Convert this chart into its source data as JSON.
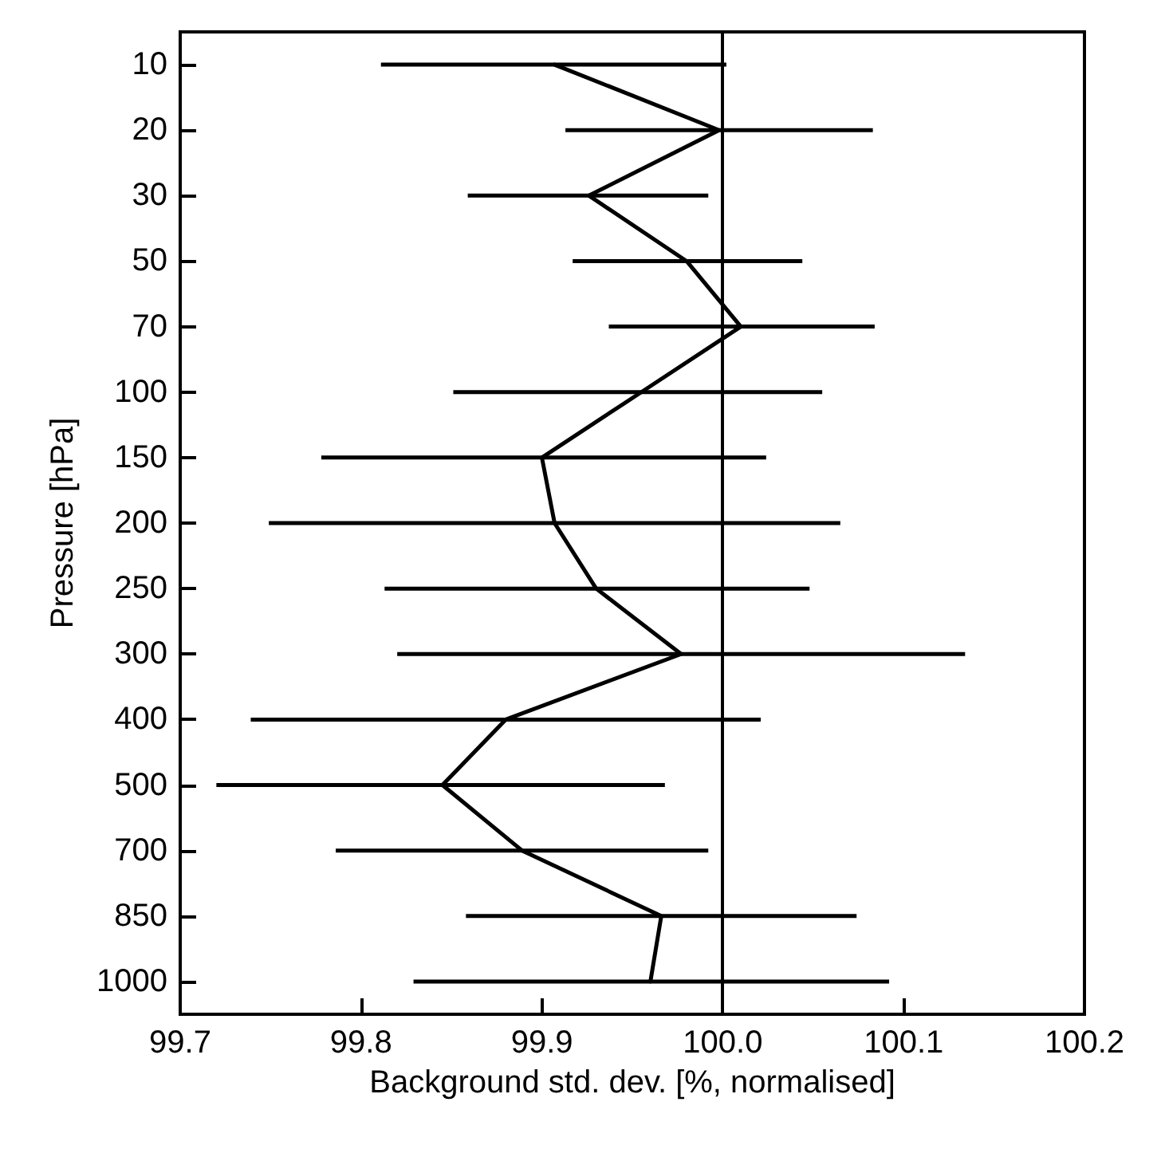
{
  "chart_data": {
    "type": "line",
    "orientation": "horizontal",
    "xlabel": "Background std. dev. [%, normalised]",
    "ylabel": "Pressure [hPa]",
    "categories": [
      "10",
      "20",
      "30",
      "50",
      "70",
      "100",
      "150",
      "200",
      "250",
      "300",
      "400",
      "500",
      "700",
      "850",
      "1000"
    ],
    "values": [
      99.907,
      99.998,
      99.926,
      99.98,
      100.01,
      99.955,
      99.9,
      99.907,
      99.93,
      99.977,
      99.88,
      99.845,
      99.889,
      99.966,
      99.96
    ],
    "errors": [
      [
        99.811,
        100.002
      ],
      [
        99.913,
        100.083
      ],
      [
        99.859,
        99.992
      ],
      [
        99.917,
        100.044
      ],
      [
        99.937,
        100.084
      ],
      [
        99.851,
        100.055
      ],
      [
        99.778,
        100.024
      ],
      [
        99.749,
        100.065
      ],
      [
        99.813,
        100.048
      ],
      [
        99.82,
        100.134
      ],
      [
        99.739,
        100.021
      ],
      [
        99.72,
        99.968
      ],
      [
        99.786,
        99.992
      ],
      [
        99.858,
        100.074
      ],
      [
        99.829,
        100.092
      ]
    ],
    "color": "#000000",
    "xlim": [
      99.7,
      100.2
    ],
    "xticks": [
      99.7,
      99.8,
      99.9,
      {
        "value": 100,
        "label": "100.0"
      },
      100.1,
      100.2
    ],
    "ref_lines": [
      {
        "axis": "x",
        "value": 100,
        "color": "#000000",
        "line_style": "solid"
      }
    ],
    "grid": false,
    "marker": "none",
    "line_style": "solid"
  }
}
